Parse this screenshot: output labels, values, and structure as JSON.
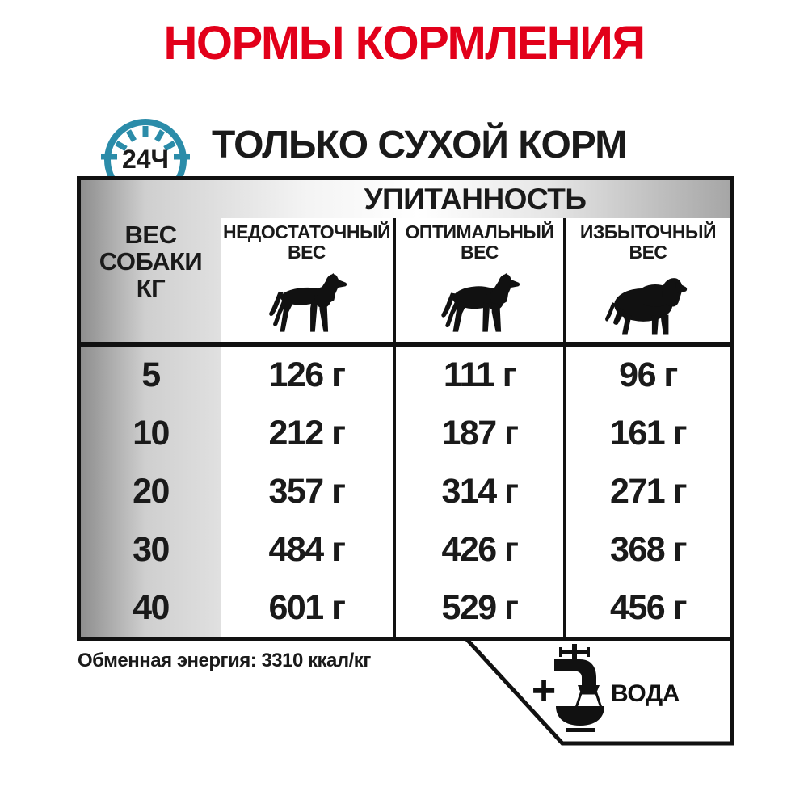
{
  "title": "НОРМЫ КОРМЛЕНИЯ",
  "clock": {
    "label": "24Ч",
    "icon": "24h-clock-icon",
    "color": "#2b8ca9"
  },
  "subtitle": "ТОЛЬКО СУХОЙ КОРМ",
  "table": {
    "condition_header": "УПИТАННОСТЬ",
    "weight_header_lines": [
      "ВЕС",
      "СОБАКИ",
      "КГ"
    ],
    "columns": [
      {
        "line1": "НЕДОСТАТОЧНЫЙ",
        "line2": "ВЕС",
        "icon": "underweight-dog-icon"
      },
      {
        "line1": "ОПТИМАЛЬНЫЙ",
        "line2": "ВЕС",
        "icon": "optimal-dog-icon"
      },
      {
        "line1": "ИЗБЫТОЧНЫЙ",
        "line2": "ВЕС",
        "icon": "overweight-dog-icon"
      }
    ],
    "rows": [
      {
        "weight_kg": "5",
        "underweight": "126 г",
        "optimal": "111 г",
        "overweight": "96 г"
      },
      {
        "weight_kg": "10",
        "underweight": "212 г",
        "optimal": "187 г",
        "overweight": "161 г"
      },
      {
        "weight_kg": "20",
        "underweight": "357 г",
        "optimal": "314 г",
        "overweight": "271 г"
      },
      {
        "weight_kg": "30",
        "underweight": "484 г",
        "optimal": "426 г",
        "overweight": "368 г"
      },
      {
        "weight_kg": "40",
        "underweight": "601 г",
        "optimal": "529 г",
        "overweight": "456 г"
      }
    ]
  },
  "footer": {
    "energy_note": "Обменная энергия: 3310 ккал/кг",
    "plus_sign": "+",
    "water_label": "ВОДА",
    "water_icon": "faucet-water-bowl-icon"
  },
  "colors": {
    "accent_red": "#e2001a",
    "clock_teal": "#2b8ca9",
    "table_line": "#111111"
  }
}
